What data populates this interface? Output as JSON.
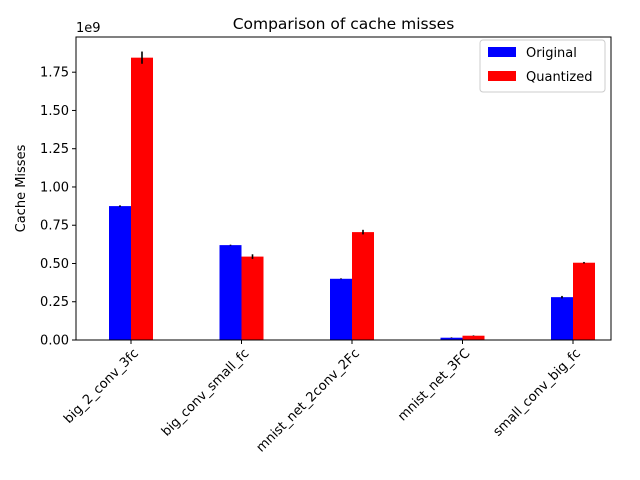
{
  "chart_data": {
    "type": "bar",
    "title": "Comparison of cache misses",
    "xlabel": "",
    "ylabel": "Cache Misses",
    "offset_text": "1e9",
    "categories": [
      "big_2_conv_3fc",
      "big_conv_small_fc",
      "mnist_net_2conv_2Fc",
      "mnist_net_3FC",
      "small_conv_big_fc"
    ],
    "series": [
      {
        "name": "Original",
        "color": "#0000ff",
        "values": [
          875000000,
          620000000,
          400000000,
          15000000,
          280000000
        ],
        "errors": [
          5000000,
          3000000,
          3000000,
          2000000,
          8000000
        ]
      },
      {
        "name": "Quantized",
        "color": "#ff0000",
        "values": [
          1845000000,
          545000000,
          705000000,
          28000000,
          505000000
        ],
        "errors": [
          40000000,
          15000000,
          15000000,
          2000000,
          5000000
        ]
      }
    ],
    "ylim": [
      0,
      1980000000
    ],
    "yticks": [
      0,
      250000000,
      500000000,
      750000000,
      1000000000,
      1250000000,
      1500000000,
      1750000000
    ],
    "ytick_labels": [
      "0.00",
      "0.25",
      "0.50",
      "0.75",
      "1.00",
      "1.25",
      "1.50",
      "1.75"
    ],
    "legend_position": "top-right",
    "grid": false
  }
}
